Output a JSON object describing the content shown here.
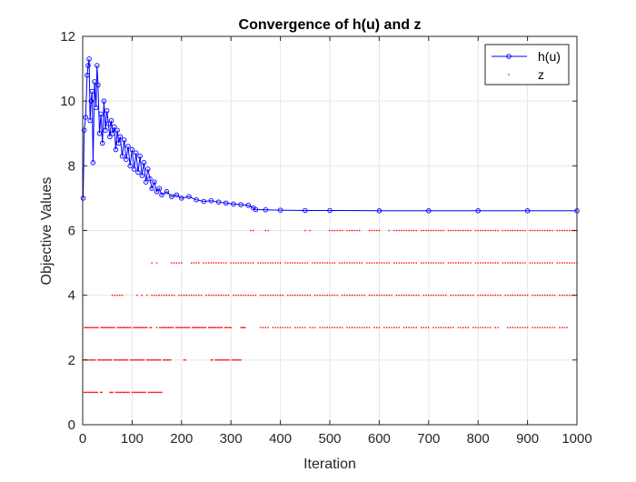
{
  "chart_data": {
    "type": "line",
    "title": "Convergence of h(u) and z",
    "xlabel": "Iteration",
    "ylabel": "Objective Values",
    "xlim": [
      0,
      1000
    ],
    "ylim": [
      0,
      12
    ],
    "xticks": [
      "0",
      "100",
      "200",
      "300",
      "400",
      "500",
      "600",
      "700",
      "800",
      "900",
      "1000"
    ],
    "yticks": [
      "0",
      "2",
      "4",
      "6",
      "8",
      "10",
      "12"
    ],
    "grid": true,
    "legend_position": "top-right",
    "series": [
      {
        "name": "h(u)",
        "style": "line with circle markers",
        "color": "#0000ff",
        "points": [
          [
            1,
            7.0
          ],
          [
            3,
            9.1
          ],
          [
            6,
            9.5
          ],
          [
            9,
            10.8
          ],
          [
            11,
            11.1
          ],
          [
            13,
            11.3
          ],
          [
            15,
            9.4
          ],
          [
            17,
            10.0
          ],
          [
            19,
            10.3
          ],
          [
            21,
            8.1
          ],
          [
            24,
            10.6
          ],
          [
            27,
            9.8
          ],
          [
            29,
            11.1
          ],
          [
            31,
            10.5
          ],
          [
            34,
            9.0
          ],
          [
            37,
            9.6
          ],
          [
            40,
            8.7
          ],
          [
            43,
            10.0
          ],
          [
            46,
            9.1
          ],
          [
            49,
            9.7
          ],
          [
            52,
            9.3
          ],
          [
            55,
            8.9
          ],
          [
            58,
            9.4
          ],
          [
            61,
            9.0
          ],
          [
            64,
            9.2
          ],
          [
            67,
            8.5
          ],
          [
            70,
            9.1
          ],
          [
            73,
            8.7
          ],
          [
            76,
            8.9
          ],
          [
            80,
            8.3
          ],
          [
            84,
            8.8
          ],
          [
            88,
            8.2
          ],
          [
            92,
            8.6
          ],
          [
            96,
            8.0
          ],
          [
            100,
            8.5
          ],
          [
            104,
            7.9
          ],
          [
            108,
            8.4
          ],
          [
            112,
            7.8
          ],
          [
            116,
            8.3
          ],
          [
            120,
            7.7
          ],
          [
            124,
            8.1
          ],
          [
            128,
            7.5
          ],
          [
            132,
            7.9
          ],
          [
            136,
            7.6
          ],
          [
            140,
            7.3
          ],
          [
            145,
            7.5
          ],
          [
            150,
            7.2
          ],
          [
            155,
            7.3
          ],
          [
            160,
            7.1
          ],
          [
            170,
            7.2
          ],
          [
            180,
            7.05
          ],
          [
            190,
            7.1
          ],
          [
            200,
            7.0
          ],
          [
            215,
            7.05
          ],
          [
            230,
            6.95
          ],
          [
            245,
            6.9
          ],
          [
            260,
            6.92
          ],
          [
            275,
            6.88
          ],
          [
            290,
            6.85
          ],
          [
            305,
            6.82
          ],
          [
            320,
            6.8
          ],
          [
            335,
            6.78
          ],
          [
            345,
            6.7
          ],
          [
            350,
            6.65
          ],
          [
            370,
            6.64
          ],
          [
            400,
            6.63
          ],
          [
            450,
            6.62
          ],
          [
            500,
            6.62
          ],
          [
            600,
            6.61
          ],
          [
            700,
            6.61
          ],
          [
            800,
            6.61
          ],
          [
            900,
            6.61
          ],
          [
            1000,
            6.61
          ]
        ]
      },
      {
        "name": "z",
        "style": "scattered dots",
        "color": "#ff0000",
        "levels": [
          {
            "y": 1,
            "x_ranges": [
              [
                3,
                40
              ],
              [
                55,
                160
              ]
            ]
          },
          {
            "y": 2,
            "x_ranges": [
              [
                1,
                180
              ],
              [
                205,
                210
              ],
              [
                260,
                320
              ]
            ]
          },
          {
            "y": 3,
            "x_ranges": [
              [
                1,
                140
              ],
              [
                150,
                300
              ],
              [
                320,
                330
              ],
              [
                360,
                420
              ],
              [
                430,
                470
              ],
              [
                480,
                580
              ],
              [
                590,
                640
              ],
              [
                650,
                700
              ],
              [
                710,
                780
              ],
              [
                790,
                840
              ],
              [
                860,
                980
              ]
            ]
          },
          {
            "y": 4,
            "x_ranges": [
              [
                60,
                80
              ],
              [
                110,
                120
              ],
              [
                130,
                1000
              ]
            ]
          },
          {
            "y": 5,
            "x_ranges": [
              [
                140,
                150
              ],
              [
                180,
                200
              ],
              [
                220,
                1000
              ]
            ]
          },
          {
            "y": 6,
            "x_ranges": [
              [
                340,
                345
              ],
              [
                370,
                375
              ],
              [
                450,
                460
              ],
              [
                500,
                560
              ],
              [
                580,
                600
              ],
              [
                620,
                1000
              ]
            ]
          }
        ]
      }
    ]
  }
}
